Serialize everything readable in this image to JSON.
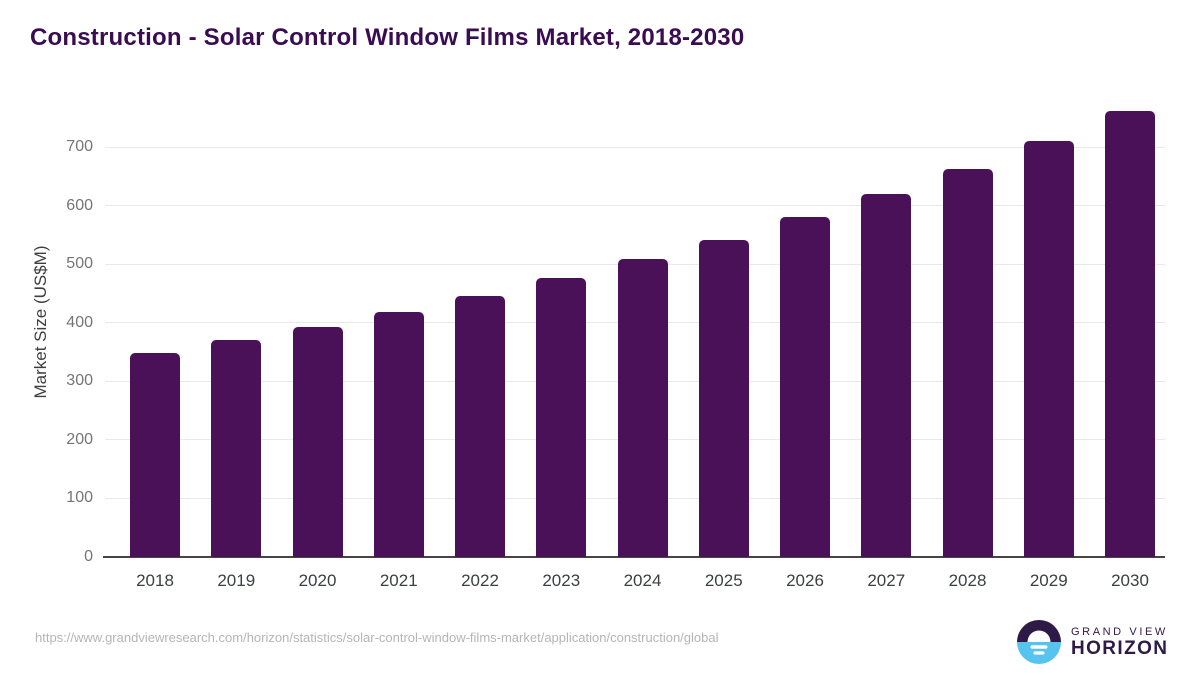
{
  "page": {
    "title": "Construction - Solar Control Window Films Market, 2018-2030",
    "source_url": "https://www.grandviewresearch.com/horizon/statistics/solar-control-window-films-market/application/construction/global",
    "logo": {
      "top": "GRAND VIEW",
      "bottom": "HORIZON"
    }
  },
  "colors": {
    "title": "#3a0d52",
    "bar": "#4a1158",
    "gridline": "#e9e9e9",
    "axis_line": "#454545",
    "y_tick_text": "#757575",
    "x_tick_text": "#3c4043",
    "axis_title_text": "#3f3f3f",
    "url_text": "#b5b5b5",
    "logo_dark": "#2e1a47",
    "logo_blue": "#57c4f0"
  },
  "chart_data": {
    "type": "bar",
    "title": "Construction - Solar Control Window Films Market, 2018-2030",
    "categories": [
      "2018",
      "2019",
      "2020",
      "2021",
      "2022",
      "2023",
      "2024",
      "2025",
      "2026",
      "2027",
      "2028",
      "2029",
      "2030"
    ],
    "values": [
      348,
      370,
      393,
      418,
      446,
      476,
      508,
      542,
      580,
      619,
      663,
      710,
      762
    ],
    "xlabel": "",
    "ylabel": "Market Size (US$M)",
    "ylim": [
      0,
      780
    ],
    "yticks": [
      0,
      100,
      200,
      300,
      400,
      500,
      600,
      700
    ],
    "grid": true,
    "legend": false,
    "bar_color": "#4a1158"
  }
}
